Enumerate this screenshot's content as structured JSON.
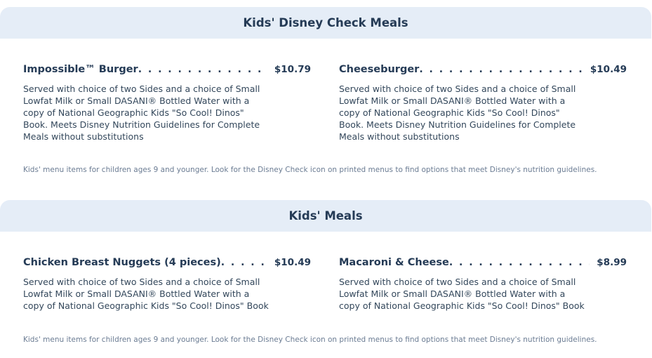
{
  "sections": [
    {
      "title": "Kids' Disney Check Meals",
      "items": [
        {
          "name": "Impossible™ Burger",
          "price": "$10.79",
          "description": "Served with choice of two Sides and a choice of Small Lowfat Milk or Small DASANI® Bottled Water with a copy of National Geographic Kids \"So Cool! Dinos\" Book. Meets Disney Nutrition Guidelines for Complete Meals without substitutions"
        },
        {
          "name": "Cheeseburger",
          "price": "$10.49",
          "description": "Served with choice of two Sides and a choice of Small Lowfat Milk or Small DASANI® Bottled Water with a copy of National Geographic Kids \"So Cool! Dinos\" Book. Meets Disney Nutrition Guidelines for Complete Meals without substitutions"
        }
      ],
      "note": "Kids' menu items for children ages 9 and younger. Look for the Disney Check icon on printed menus to find options that meet Disney's nutrition guidelines."
    },
    {
      "title": "Kids' Meals",
      "items": [
        {
          "name": "Chicken Breast Nuggets (4 pieces)",
          "price": "$10.49",
          "description": "Served with choice of two Sides and a choice of Small Lowfat Milk or Small DASANI® Bottled Water with a copy of National Geographic Kids \"So Cool! Dinos\" Book"
        },
        {
          "name": "Macaroni & Cheese",
          "price": "$8.99",
          "description": "Served with choice of two Sides and a choice of Small Lowfat Milk or Small DASANI® Bottled Water with a copy of National Geographic Kids \"So Cool! Dinos\" Book"
        }
      ],
      "note": "Kids' menu items for children ages 9 and younger. Look for the Disney Check icon on printed menus to find options that meet Disney's nutrition guidelines."
    }
  ]
}
